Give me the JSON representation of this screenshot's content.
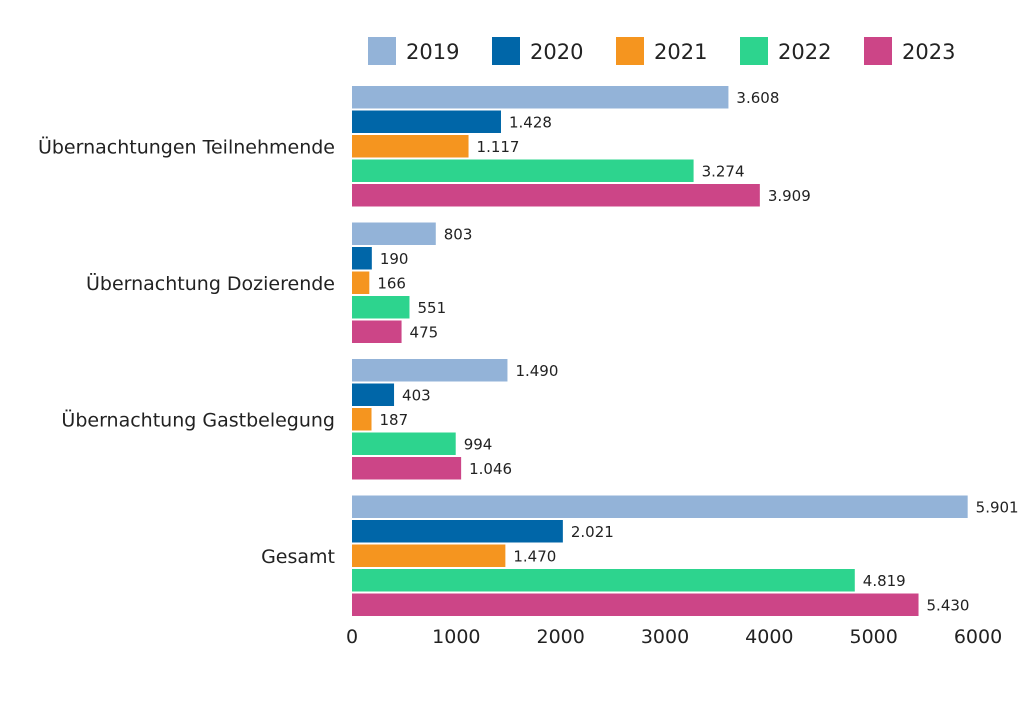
{
  "chart_data": {
    "type": "bar",
    "orientation": "horizontal",
    "categories": [
      "Übernachtungen Teilnehmende",
      "Übernachtung Dozierende",
      "Übernachtung Gastbelegung",
      "Gesamt"
    ],
    "series": [
      {
        "name": "2019",
        "color": "#93B3D8",
        "values": [
          3608,
          803,
          1490,
          5901
        ],
        "labels": [
          "3.608",
          "803",
          "1.490",
          "5.901"
        ]
      },
      {
        "name": "2020",
        "color": "#0066A8",
        "values": [
          1428,
          190,
          403,
          2021
        ],
        "labels": [
          "1.428",
          "190",
          "403",
          "2.021"
        ]
      },
      {
        "name": "2021",
        "color": "#F5951F",
        "values": [
          1117,
          166,
          187,
          1470
        ],
        "labels": [
          "1.117",
          "166",
          "187",
          "1.470"
        ]
      },
      {
        "name": "2022",
        "color": "#2DD48E",
        "values": [
          3274,
          551,
          994,
          4819
        ],
        "labels": [
          "3.274",
          "551",
          "994",
          "4.819"
        ]
      },
      {
        "name": "2023",
        "color": "#CC4587",
        "values": [
          3909,
          475,
          1046,
          5430
        ],
        "labels": [
          "3.909",
          "475",
          "1.046",
          "5.430"
        ]
      }
    ],
    "xlim": [
      0,
      6000
    ],
    "xticks": [
      "0",
      "1000",
      "2000",
      "3000",
      "4000",
      "5000",
      "6000"
    ],
    "legend_position": "top",
    "grid": false
  }
}
